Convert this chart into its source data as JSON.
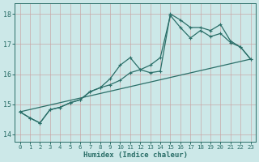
{
  "bg_color": "#cce8e8",
  "grid_color": "#c8a8a8",
  "line_color": "#2a6e68",
  "xlabel": "Humidex (Indice chaleur)",
  "xlim": [
    -0.5,
    23.5
  ],
  "ylim": [
    13.75,
    18.35
  ],
  "yticks": [
    14,
    15,
    16,
    17,
    18
  ],
  "xticks": [
    0,
    1,
    2,
    3,
    4,
    5,
    6,
    7,
    8,
    9,
    10,
    11,
    12,
    13,
    14,
    15,
    16,
    17,
    18,
    19,
    20,
    21,
    22,
    23
  ],
  "line1_x": [
    0,
    23
  ],
  "line1_y": [
    14.75,
    16.5
  ],
  "line2_x": [
    0,
    1,
    2,
    3,
    4,
    5,
    6,
    7,
    8,
    9,
    10,
    11,
    12,
    13,
    14,
    15,
    16,
    17,
    18,
    19,
    20,
    21,
    22,
    23
  ],
  "line2_y": [
    14.75,
    14.55,
    14.38,
    14.82,
    14.9,
    15.05,
    15.15,
    15.42,
    15.55,
    15.65,
    15.8,
    16.05,
    16.15,
    16.3,
    16.55,
    17.95,
    17.55,
    17.2,
    17.45,
    17.25,
    17.35,
    17.05,
    16.9,
    16.5
  ],
  "line3_x": [
    0,
    1,
    2,
    3,
    4,
    5,
    6,
    7,
    8,
    9,
    10,
    11,
    12,
    13,
    14,
    15,
    16,
    17,
    18,
    19,
    20,
    21,
    22,
    23
  ],
  "line3_y": [
    14.75,
    14.55,
    14.38,
    14.82,
    14.9,
    15.05,
    15.15,
    15.42,
    15.55,
    15.85,
    16.3,
    16.55,
    16.15,
    16.05,
    16.1,
    18.0,
    17.8,
    17.55,
    17.55,
    17.45,
    17.65,
    17.1,
    16.9,
    16.5
  ]
}
